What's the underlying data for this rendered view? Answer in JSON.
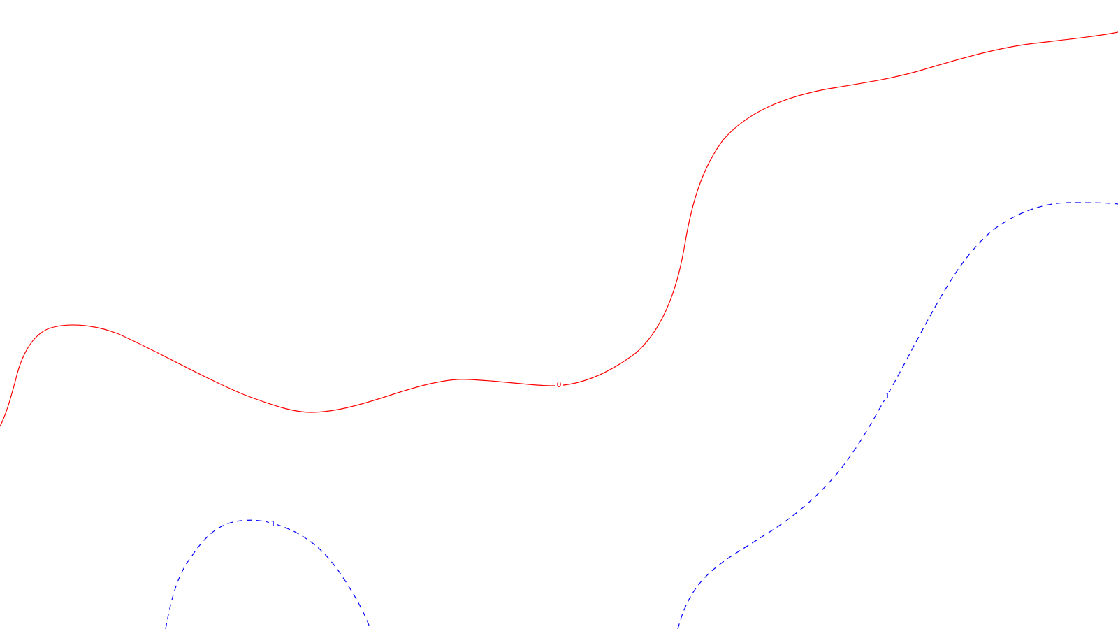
{
  "colors": {
    "background": "#ffffff",
    "contour_zero": "#ff0000",
    "contour_one": "#0000ff"
  },
  "contours": [
    {
      "id": "zero",
      "level_label": "0",
      "style": "solid"
    },
    {
      "id": "one-left",
      "level_label": "1",
      "style": "dashed"
    },
    {
      "id": "one-right",
      "level_label": "1",
      "style": "dashed"
    }
  ]
}
